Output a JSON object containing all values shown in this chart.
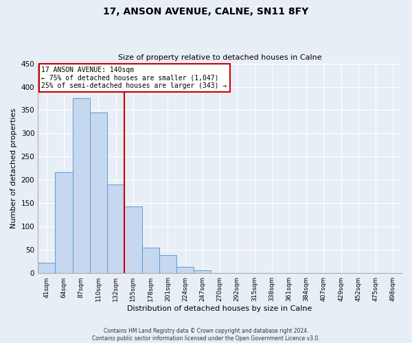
{
  "title": "17, ANSON AVENUE, CALNE, SN11 8FY",
  "subtitle": "Size of property relative to detached houses in Calne",
  "xlabel": "Distribution of detached houses by size in Calne",
  "ylabel": "Number of detached properties",
  "bar_color": "#c5d8f0",
  "bar_edge_color": "#5b9bd5",
  "bg_color": "#e8eef6",
  "grid_color": "#ffffff",
  "categories": [
    "41sqm",
    "64sqm",
    "87sqm",
    "110sqm",
    "132sqm",
    "155sqm",
    "178sqm",
    "201sqm",
    "224sqm",
    "247sqm",
    "270sqm",
    "292sqm",
    "315sqm",
    "338sqm",
    "361sqm",
    "384sqm",
    "407sqm",
    "429sqm",
    "452sqm",
    "475sqm",
    "498sqm"
  ],
  "values": [
    23,
    217,
    375,
    345,
    190,
    143,
    55,
    39,
    13,
    6,
    1,
    0,
    0,
    0,
    1,
    0,
    1,
    0,
    0,
    1,
    1
  ],
  "ylim": [
    0,
    450
  ],
  "yticks": [
    0,
    50,
    100,
    150,
    200,
    250,
    300,
    350,
    400,
    450
  ],
  "property_line_x": 4,
  "annotation_title": "17 ANSON AVENUE: 140sqm",
  "annotation_line1": "← 75% of detached houses are smaller (1,047)",
  "annotation_line2": "25% of semi-detached houses are larger (343) →",
  "annotation_box_color": "#ffffff",
  "annotation_box_edge_color": "#cc0000",
  "vline_color": "#cc0000",
  "footer1": "Contains HM Land Registry data © Crown copyright and database right 2024.",
  "footer2": "Contains public sector information licensed under the Open Government Licence v3.0."
}
